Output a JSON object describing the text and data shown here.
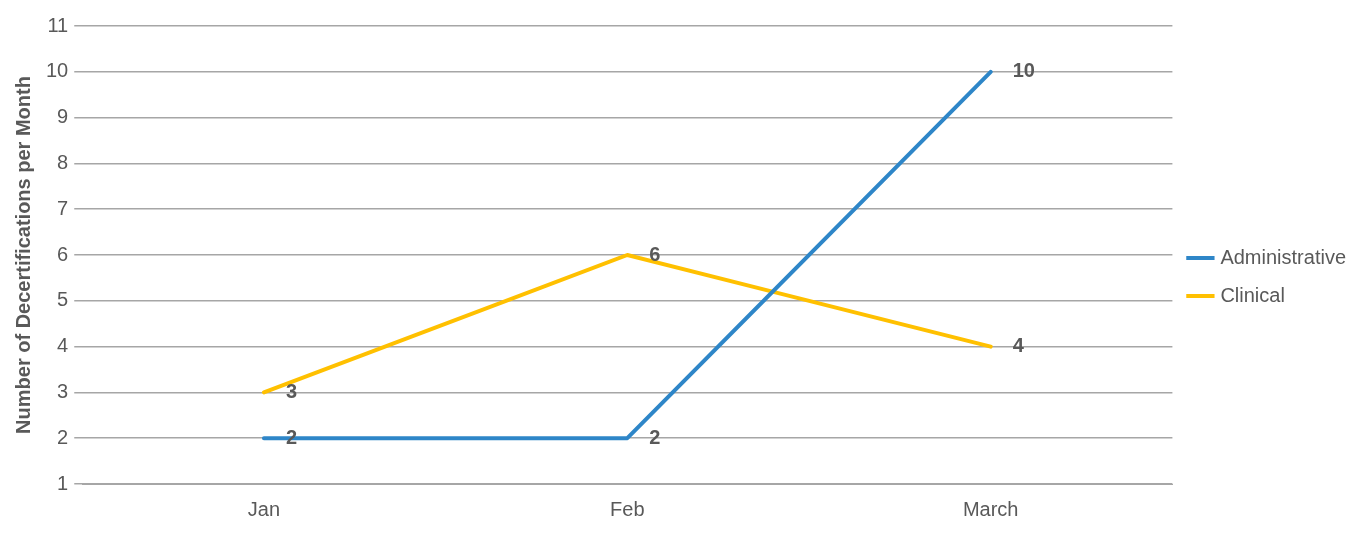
{
  "chart_data": {
    "type": "line",
    "ylabel": "Number of Decertifications per Month",
    "categories": [
      "Jan",
      "Feb",
      "March"
    ],
    "series": [
      {
        "name": "Administrative",
        "color": "#2e86c8",
        "values": [
          2,
          2,
          10
        ]
      },
      {
        "name": "Clinical",
        "color": "#ffc000",
        "values": [
          3,
          6,
          4
        ]
      }
    ],
    "ylim": [
      1,
      11
    ],
    "yticks": [
      1,
      2,
      3,
      4,
      5,
      6,
      7,
      8,
      9,
      10,
      11
    ],
    "grid": "y",
    "legend": "right",
    "data_labels": true,
    "marker": "none",
    "line_style": "solid"
  }
}
